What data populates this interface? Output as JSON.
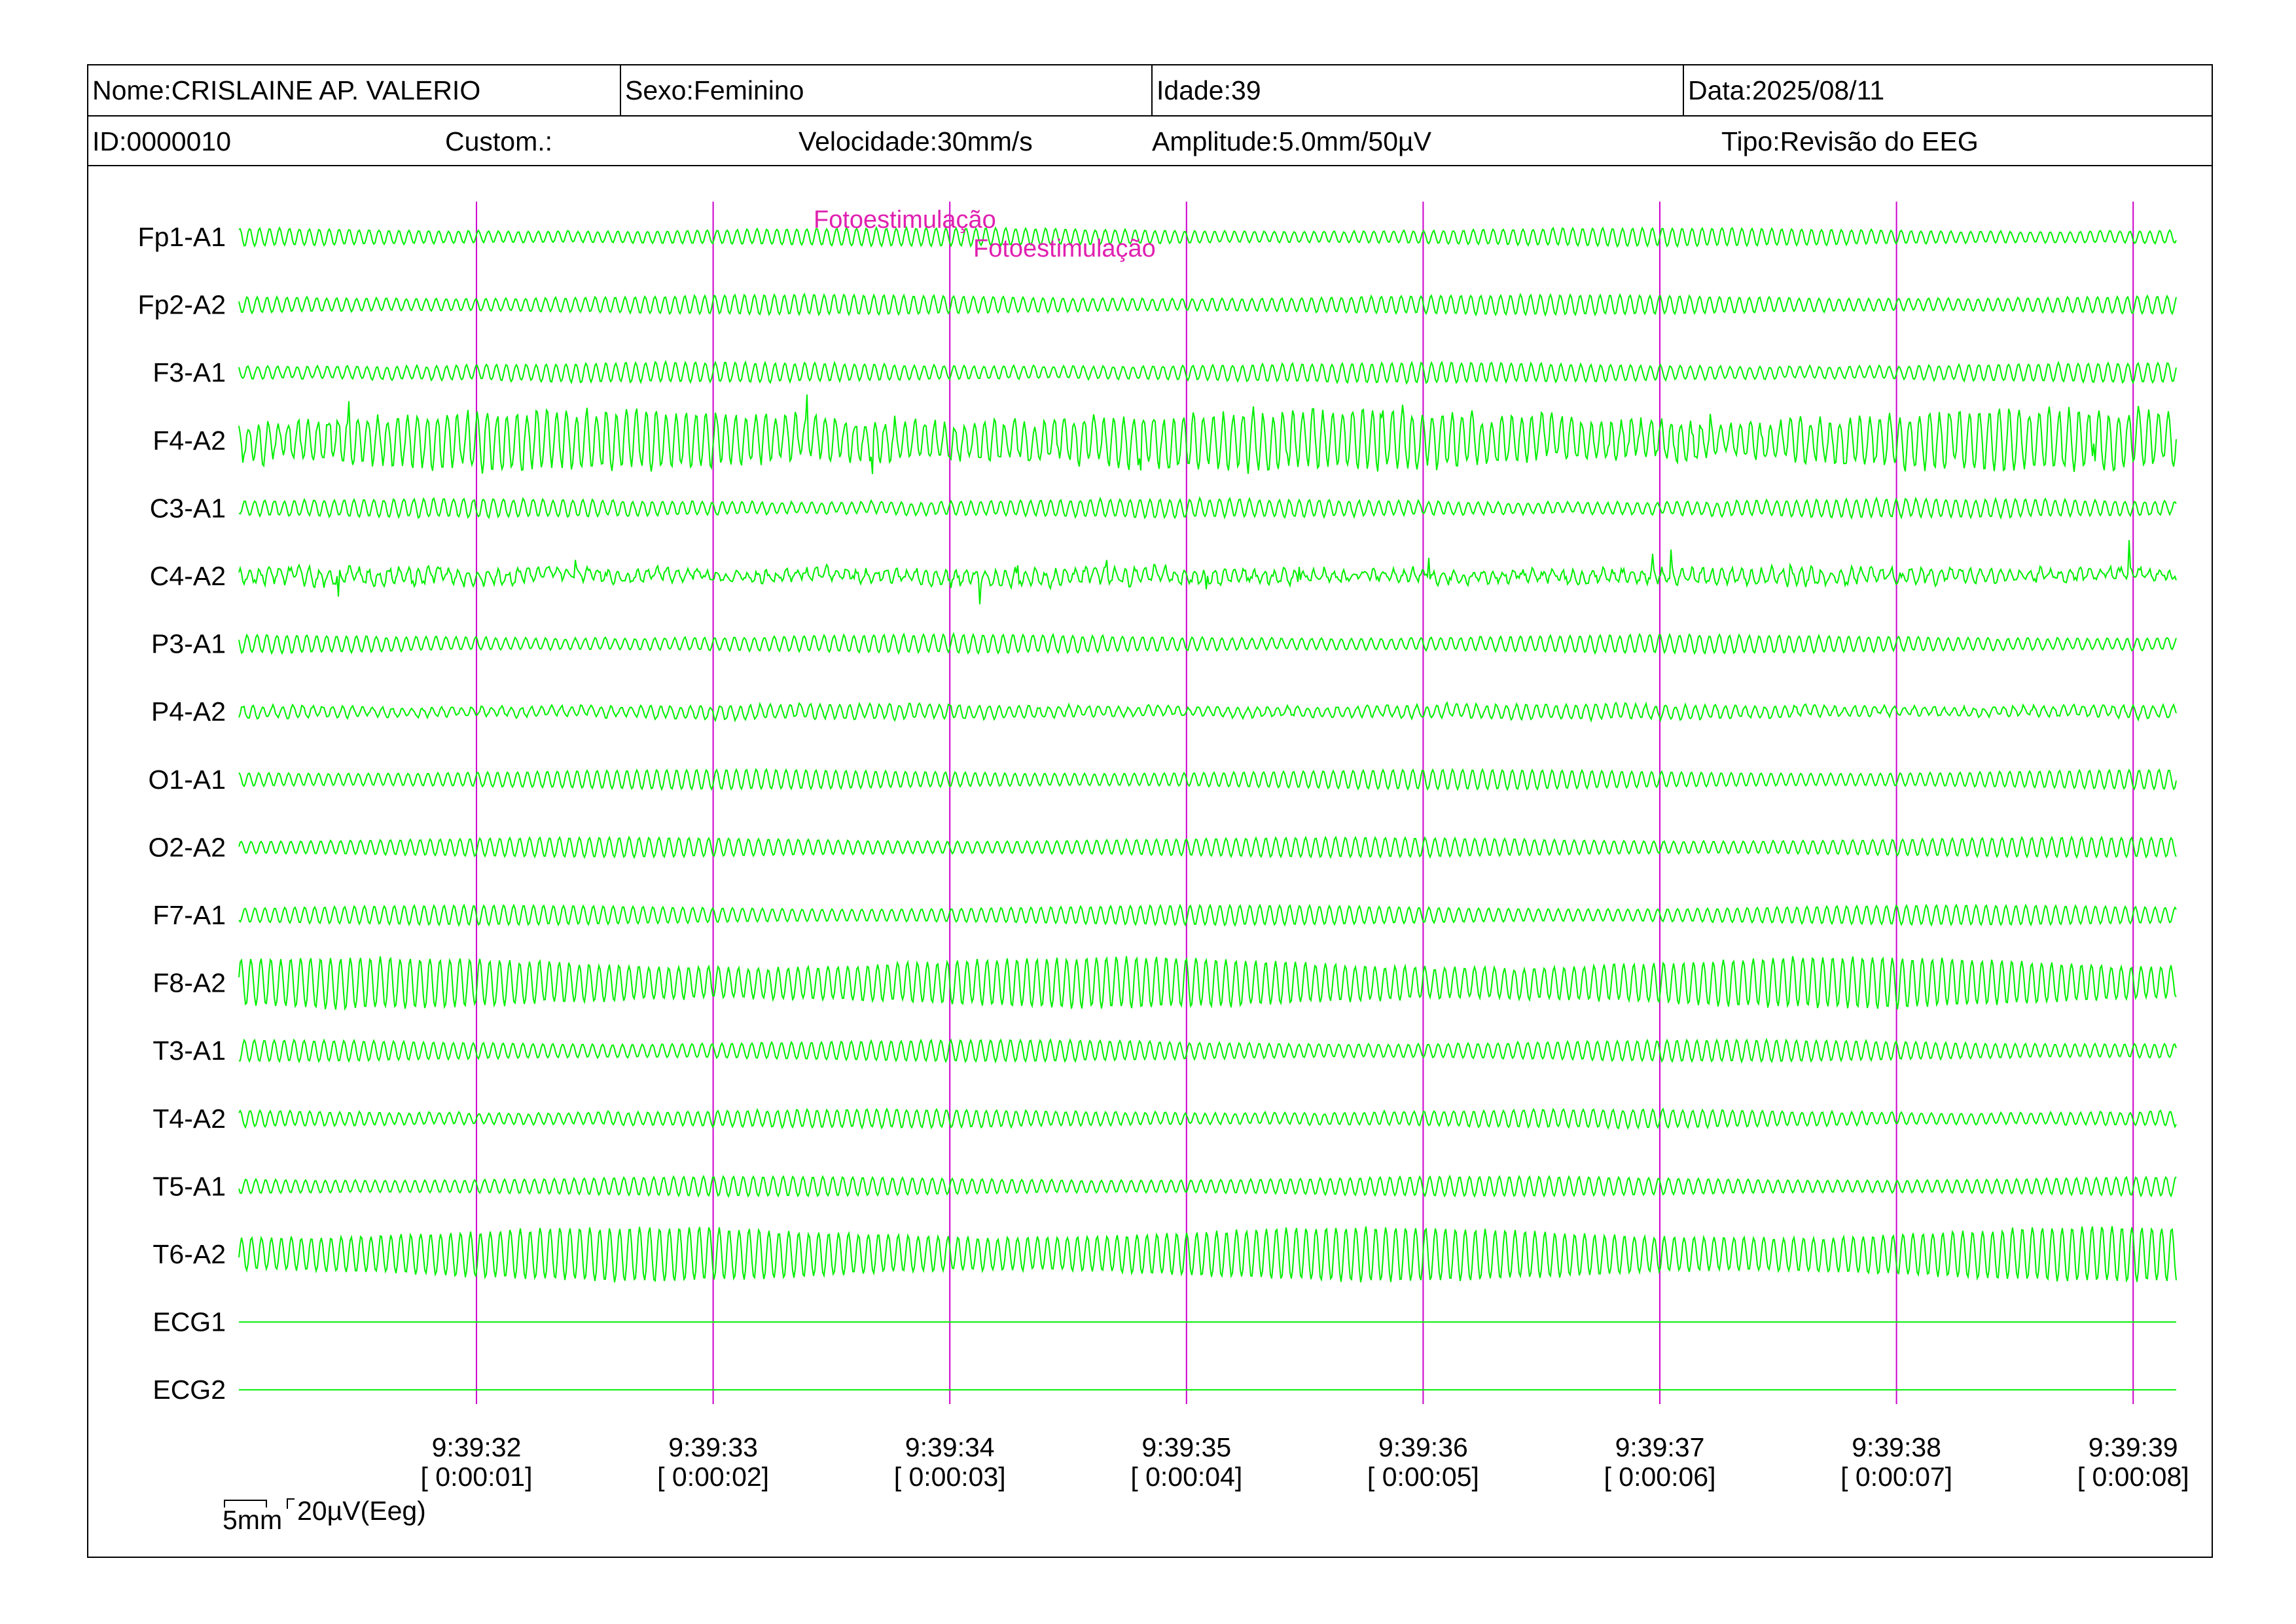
{
  "header": {
    "name": "Nome:CRISLAINE AP. VALERIO",
    "sex": "Sexo:Feminino",
    "age": "Idade:39",
    "date": "Data:2025/08/11",
    "id": "ID:0000010",
    "custom": "Custom.:",
    "speed": "Velocidade:30mm/s",
    "amplitude": "Amplitude:5.0mm/50µV",
    "type": "Tipo:Revisão do EEG"
  },
  "channels": [
    {
      "label": "Fp1-A1",
      "amp": 0.5,
      "noise": 0.1
    },
    {
      "label": "Fp2-A2",
      "amp": 0.55,
      "noise": 0.1
    },
    {
      "label": "F3-A1",
      "amp": 0.55,
      "noise": 0.15
    },
    {
      "label": "F4-A2",
      "amp": 1.6,
      "noise": 1.0
    },
    {
      "label": "C3-A1",
      "amp": 0.5,
      "noise": 0.2
    },
    {
      "label": "C4-A2",
      "amp": 0.4,
      "noise": 0.7
    },
    {
      "label": "P3-A1",
      "amp": 0.5,
      "noise": 0.15
    },
    {
      "label": "P4-A2",
      "amp": 0.4,
      "noise": 0.3
    },
    {
      "label": "O1-A1",
      "amp": 0.55,
      "noise": 0.05
    },
    {
      "label": "O2-A2",
      "amp": 0.55,
      "noise": 0.05
    },
    {
      "label": "F7-A1",
      "amp": 0.55,
      "noise": 0.05
    },
    {
      "label": "F8-A2",
      "amp": 1.4,
      "noise": 0.25
    },
    {
      "label": "T3-A1",
      "amp": 0.6,
      "noise": 0.08
    },
    {
      "label": "T4-A2",
      "amp": 0.5,
      "noise": 0.15
    },
    {
      "label": "T5-A1",
      "amp": 0.55,
      "noise": 0.05
    },
    {
      "label": "T6-A2",
      "amp": 1.5,
      "noise": 0.2
    },
    {
      "label": "ECG1",
      "amp": 0,
      "noise": 0
    },
    {
      "label": "ECG2",
      "amp": 0,
      "noise": 0
    }
  ],
  "time_marks": [
    {
      "clock": "9:39:32",
      "elapsed": "[ 0:00:01]"
    },
    {
      "clock": "9:39:33",
      "elapsed": "[ 0:00:02]"
    },
    {
      "clock": "9:39:34",
      "elapsed": "[ 0:00:03]"
    },
    {
      "clock": "9:39:35",
      "elapsed": "[ 0:00:04]"
    },
    {
      "clock": "9:39:36",
      "elapsed": "[ 0:00:05]"
    },
    {
      "clock": "9:39:37",
      "elapsed": "[ 0:00:06]"
    },
    {
      "clock": "9:39:38",
      "elapsed": "[ 0:00:07]"
    },
    {
      "clock": "9:39:39",
      "elapsed": "[ 0:00:08]"
    }
  ],
  "events": [
    {
      "label": "Fotoestimulação"
    },
    {
      "label": "Fotoestimulação"
    }
  ],
  "scale": {
    "time": "5mm",
    "amplitude": "20µV(Eeg)"
  },
  "colors": {
    "trace": "#00ee00",
    "marker": "#cc00cc",
    "event_text": "#e020b0"
  }
}
